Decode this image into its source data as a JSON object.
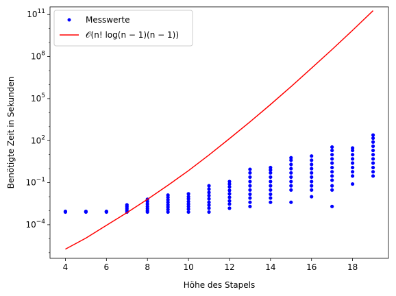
{
  "chart_data": {
    "type": "scatter",
    "title": "",
    "xlabel": "Höhe des Stapels",
    "ylabel": "Benötigte Zeit in Sekunden",
    "xlim": [
      3.25,
      19.75
    ],
    "ylim_log10": [
      -6.4,
      11.55
    ],
    "yscale": "log",
    "x_ticks": [
      4,
      6,
      8,
      10,
      12,
      14,
      16,
      18
    ],
    "y_ticks": [
      {
        "exp": -4,
        "base": "10",
        "sup": "−4"
      },
      {
        "exp": -1,
        "base": "10",
        "sup": "−1"
      },
      {
        "exp": 2,
        "base": "10",
        "sup": "2"
      },
      {
        "exp": 5,
        "base": "10",
        "sup": "5"
      },
      {
        "exp": 8,
        "base": "10",
        "sup": "8"
      },
      {
        "exp": 11,
        "base": "10",
        "sup": "11"
      }
    ],
    "grid": false,
    "legend": {
      "placement": "top-left",
      "entries": [
        {
          "label": "Messwerte",
          "kind": "marker",
          "color": "#0000ff"
        },
        {
          "label": "𝒪(n! log(n − 1)(n − 1))",
          "kind": "line",
          "color": "#ff0000"
        }
      ]
    },
    "series": [
      {
        "name": "Messwerte",
        "type": "scatter",
        "color": "#0000ff",
        "points": [
          {
            "x": 4,
            "y": 0.0008
          },
          {
            "x": 4,
            "y": 0.00085
          },
          {
            "x": 4,
            "y": 0.0009
          },
          {
            "x": 5,
            "y": 0.0008
          },
          {
            "x": 5,
            "y": 0.00085
          },
          {
            "x": 5,
            "y": 0.0009
          },
          {
            "x": 6,
            "y": 0.0008
          },
          {
            "x": 6,
            "y": 0.00085
          },
          {
            "x": 6,
            "y": 0.0009
          },
          {
            "x": 7,
            "y": 0.0008
          },
          {
            "x": 7,
            "y": 0.0011
          },
          {
            "x": 7,
            "y": 0.0015
          },
          {
            "x": 7,
            "y": 0.002
          },
          {
            "x": 7,
            "y": 0.0026
          },
          {
            "x": 8,
            "y": 0.0008
          },
          {
            "x": 8,
            "y": 0.001
          },
          {
            "x": 8,
            "y": 0.0014
          },
          {
            "x": 8,
            "y": 0.002
          },
          {
            "x": 8,
            "y": 0.003
          },
          {
            "x": 8,
            "y": 0.0045
          },
          {
            "x": 8,
            "y": 0.0065
          },
          {
            "x": 9,
            "y": 0.0008
          },
          {
            "x": 9,
            "y": 0.0012
          },
          {
            "x": 9,
            "y": 0.0018
          },
          {
            "x": 9,
            "y": 0.0026
          },
          {
            "x": 9,
            "y": 0.004
          },
          {
            "x": 9,
            "y": 0.006
          },
          {
            "x": 9,
            "y": 0.009
          },
          {
            "x": 9,
            "y": 0.013
          },
          {
            "x": 10,
            "y": 0.0008
          },
          {
            "x": 10,
            "y": 0.0013
          },
          {
            "x": 10,
            "y": 0.002
          },
          {
            "x": 10,
            "y": 0.003
          },
          {
            "x": 10,
            "y": 0.0045
          },
          {
            "x": 10,
            "y": 0.007
          },
          {
            "x": 10,
            "y": 0.01
          },
          {
            "x": 10,
            "y": 0.016
          },
          {
            "x": 11,
            "y": 0.0008
          },
          {
            "x": 11,
            "y": 0.0015
          },
          {
            "x": 11,
            "y": 0.0025
          },
          {
            "x": 11,
            "y": 0.004
          },
          {
            "x": 11,
            "y": 0.007
          },
          {
            "x": 11,
            "y": 0.012
          },
          {
            "x": 11,
            "y": 0.02
          },
          {
            "x": 11,
            "y": 0.035
          },
          {
            "x": 11,
            "y": 0.06
          },
          {
            "x": 12,
            "y": 0.0015
          },
          {
            "x": 12,
            "y": 0.003
          },
          {
            "x": 12,
            "y": 0.005
          },
          {
            "x": 12,
            "y": 0.009
          },
          {
            "x": 12,
            "y": 0.016
          },
          {
            "x": 12,
            "y": 0.028
          },
          {
            "x": 12,
            "y": 0.05
          },
          {
            "x": 12,
            "y": 0.08
          },
          {
            "x": 12,
            "y": 0.12
          },
          {
            "x": 13,
            "y": 0.002
          },
          {
            "x": 13,
            "y": 0.004
          },
          {
            "x": 13,
            "y": 0.008
          },
          {
            "x": 13,
            "y": 0.015
          },
          {
            "x": 13,
            "y": 0.03
          },
          {
            "x": 13,
            "y": 0.06
          },
          {
            "x": 13,
            "y": 0.12
          },
          {
            "x": 13,
            "y": 0.25
          },
          {
            "x": 13,
            "y": 0.5
          },
          {
            "x": 13,
            "y": 0.9
          },
          {
            "x": 14,
            "y": 0.004
          },
          {
            "x": 14,
            "y": 0.008
          },
          {
            "x": 14,
            "y": 0.015
          },
          {
            "x": 14,
            "y": 0.03
          },
          {
            "x": 14,
            "y": 0.06
          },
          {
            "x": 14,
            "y": 0.12
          },
          {
            "x": 14,
            "y": 0.25
          },
          {
            "x": 14,
            "y": 0.5
          },
          {
            "x": 14,
            "y": 0.8
          },
          {
            "x": 14,
            "y": 1.2
          },
          {
            "x": 15,
            "y": 0.004
          },
          {
            "x": 15,
            "y": 0.03
          },
          {
            "x": 15,
            "y": 0.06
          },
          {
            "x": 15,
            "y": 0.12
          },
          {
            "x": 15,
            "y": 0.25
          },
          {
            "x": 15,
            "y": 0.5
          },
          {
            "x": 15,
            "y": 1
          },
          {
            "x": 15,
            "y": 2
          },
          {
            "x": 15,
            "y": 4
          },
          {
            "x": 15,
            "y": 6
          },
          {
            "x": 16,
            "y": 0.01
          },
          {
            "x": 16,
            "y": 0.03
          },
          {
            "x": 16,
            "y": 0.06
          },
          {
            "x": 16,
            "y": 0.12
          },
          {
            "x": 16,
            "y": 0.25
          },
          {
            "x": 16,
            "y": 0.5
          },
          {
            "x": 16,
            "y": 1
          },
          {
            "x": 16,
            "y": 2
          },
          {
            "x": 16,
            "y": 4
          },
          {
            "x": 16,
            "y": 8
          },
          {
            "x": 17,
            "y": 0.002
          },
          {
            "x": 17,
            "y": 0.03
          },
          {
            "x": 17,
            "y": 0.06
          },
          {
            "x": 17,
            "y": 0.15
          },
          {
            "x": 17,
            "y": 0.3
          },
          {
            "x": 17,
            "y": 0.6
          },
          {
            "x": 17,
            "y": 1.2
          },
          {
            "x": 17,
            "y": 2.5
          },
          {
            "x": 17,
            "y": 5
          },
          {
            "x": 17,
            "y": 10
          },
          {
            "x": 17,
            "y": 20
          },
          {
            "x": 17,
            "y": 35
          },
          {
            "x": 18,
            "y": 0.08
          },
          {
            "x": 18,
            "y": 0.3
          },
          {
            "x": 18,
            "y": 0.6
          },
          {
            "x": 18,
            "y": 1.2
          },
          {
            "x": 18,
            "y": 2.5
          },
          {
            "x": 18,
            "y": 5
          },
          {
            "x": 18,
            "y": 10
          },
          {
            "x": 18,
            "y": 20
          },
          {
            "x": 18,
            "y": 30
          },
          {
            "x": 19,
            "y": 0.3
          },
          {
            "x": 19,
            "y": 0.6
          },
          {
            "x": 19,
            "y": 1.2
          },
          {
            "x": 19,
            "y": 2.5
          },
          {
            "x": 19,
            "y": 5
          },
          {
            "x": 19,
            "y": 10
          },
          {
            "x": 19,
            "y": 20
          },
          {
            "x": 19,
            "y": 40
          },
          {
            "x": 19,
            "y": 80
          },
          {
            "x": 19,
            "y": 150
          },
          {
            "x": 19,
            "y": 250
          }
        ]
      },
      {
        "name": "𝒪(n! log(n − 1)(n − 1))",
        "type": "line",
        "color": "#ff0000",
        "points": [
          {
            "x": 4,
            "y": 1.8e-06
          },
          {
            "x": 5,
            "y": 1.1e-05
          },
          {
            "x": 6,
            "y": 9e-05
          },
          {
            "x": 7,
            "y": 0.00072
          },
          {
            "x": 8,
            "y": 0.0065
          },
          {
            "x": 9,
            "y": 0.065
          },
          {
            "x": 10,
            "y": 0.72
          },
          {
            "x": 11,
            "y": 9.5
          },
          {
            "x": 12,
            "y": 140
          },
          {
            "x": 13,
            "y": 2200
          },
          {
            "x": 14,
            "y": 38000
          },
          {
            "x": 15,
            "y": 720000
          },
          {
            "x": 16,
            "y": 15000000
          },
          {
            "x": 17,
            "y": 320000000
          },
          {
            "x": 18,
            "y": 7500000000
          },
          {
            "x": 19,
            "y": 190000000000
          }
        ]
      }
    ]
  }
}
